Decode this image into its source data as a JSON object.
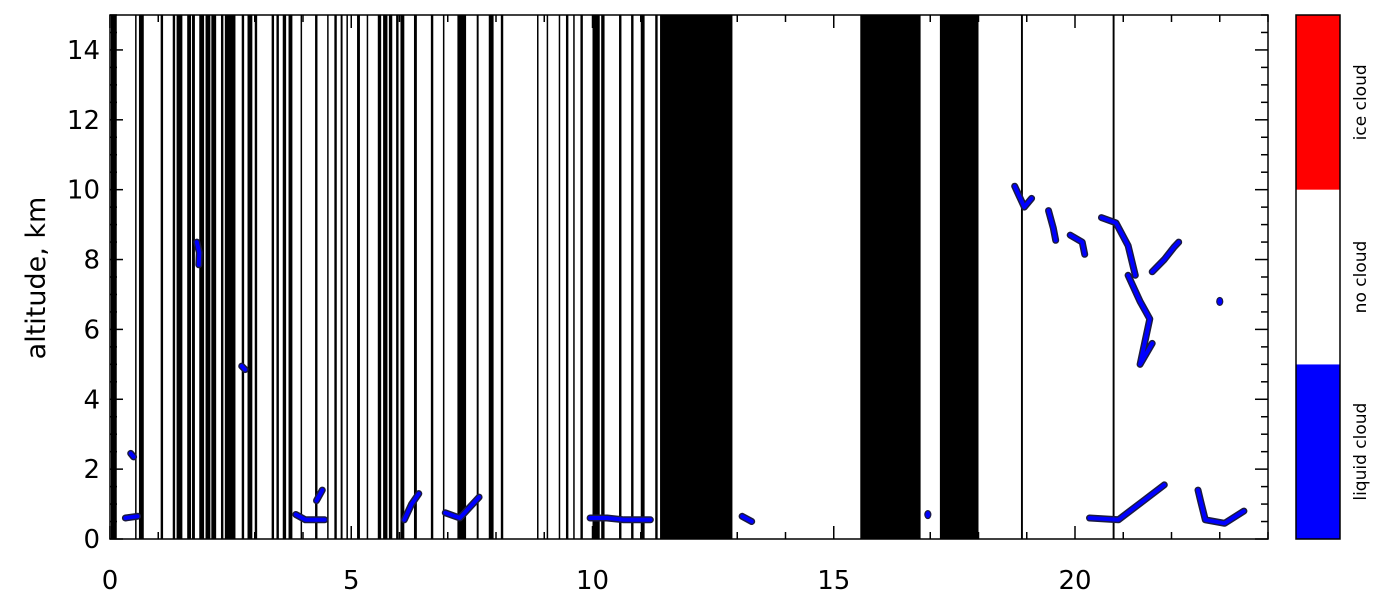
{
  "chart_data": {
    "type": "heatmap",
    "title": "",
    "xlabel": "",
    "ylabel": "altitude,  km",
    "xlim": [
      0,
      24
    ],
    "ylim": [
      0,
      15
    ],
    "x_ticks": [
      0,
      5,
      10,
      15,
      20
    ],
    "y_ticks": [
      0,
      2,
      4,
      6,
      8,
      10,
      12,
      14
    ],
    "categories": [
      "liquid cloud",
      "no cloud",
      "ice cloud"
    ],
    "colors": {
      "liquid cloud": "#0000ff",
      "no cloud": "#ffffff",
      "ice cloud": "#ff0000",
      "missing data": "#000000",
      "contour": "#1a1a40"
    },
    "missing_data_bands": [
      [
        0.02,
        0.14
      ],
      [
        0.52,
        0.55
      ],
      [
        0.6,
        0.7
      ],
      [
        1.05,
        1.1
      ],
      [
        1.3,
        1.35
      ],
      [
        1.38,
        1.5
      ],
      [
        1.6,
        1.68
      ],
      [
        1.7,
        1.76
      ],
      [
        1.85,
        1.95
      ],
      [
        1.98,
        2.08
      ],
      [
        2.1,
        2.2
      ],
      [
        2.3,
        2.35
      ],
      [
        2.38,
        2.6
      ],
      [
        2.73,
        2.78
      ],
      [
        2.85,
        2.95
      ],
      [
        3.0,
        3.05
      ],
      [
        3.35,
        3.4
      ],
      [
        3.45,
        3.5
      ],
      [
        3.58,
        3.65
      ],
      [
        3.7,
        3.78
      ],
      [
        3.95,
        3.98
      ],
      [
        4.25,
        4.3
      ],
      [
        4.5,
        4.53
      ],
      [
        4.65,
        4.7
      ],
      [
        4.78,
        4.82
      ],
      [
        4.9,
        4.93
      ],
      [
        5.12,
        5.18
      ],
      [
        5.32,
        5.35
      ],
      [
        5.55,
        5.62
      ],
      [
        5.66,
        5.75
      ],
      [
        5.78,
        5.85
      ],
      [
        5.93,
        5.98
      ],
      [
        6.02,
        6.1
      ],
      [
        6.3,
        6.36
      ],
      [
        6.65,
        6.7
      ],
      [
        6.9,
        6.93
      ],
      [
        7.2,
        7.38
      ],
      [
        7.6,
        7.64
      ],
      [
        7.85,
        7.95
      ],
      [
        8.1,
        8.15
      ],
      [
        8.85,
        8.88
      ],
      [
        9.05,
        9.08
      ],
      [
        9.3,
        9.33
      ],
      [
        9.45,
        9.5
      ],
      [
        9.6,
        9.63
      ],
      [
        9.75,
        9.8
      ],
      [
        10.0,
        10.15
      ],
      [
        10.18,
        10.25
      ],
      [
        10.55,
        10.6
      ],
      [
        10.8,
        10.85
      ],
      [
        11.0,
        11.08
      ],
      [
        11.3,
        11.35
      ],
      [
        11.4,
        12.9
      ],
      [
        15.55,
        16.8
      ],
      [
        17.2,
        18.0
      ],
      [
        18.88,
        18.92
      ],
      [
        20.78,
        20.82
      ]
    ],
    "liquid_cloud_patches": [
      [
        [
          0.43,
          2.45
        ],
        [
          0.49,
          2.35
        ]
      ],
      [
        [
          0.32,
          0.6
        ],
        [
          0.57,
          0.65
        ]
      ],
      [
        [
          1.8,
          8.5
        ],
        [
          1.85,
          8.2
        ],
        [
          1.84,
          7.85
        ]
      ],
      [
        [
          2.73,
          4.95
        ],
        [
          2.8,
          4.85
        ]
      ],
      [
        [
          3.85,
          0.7
        ],
        [
          4.05,
          0.55
        ],
        [
          4.45,
          0.55
        ]
      ],
      [
        [
          4.28,
          1.1
        ],
        [
          4.4,
          1.4
        ]
      ],
      [
        [
          6.1,
          0.55
        ],
        [
          6.25,
          1.0
        ],
        [
          6.4,
          1.3
        ]
      ],
      [
        [
          6.95,
          0.75
        ],
        [
          7.25,
          0.6
        ],
        [
          7.65,
          1.2
        ]
      ],
      [
        [
          9.95,
          0.6
        ],
        [
          10.3,
          0.6
        ],
        [
          10.65,
          0.55
        ],
        [
          11.2,
          0.55
        ]
      ],
      [
        [
          13.1,
          0.65
        ],
        [
          13.3,
          0.5
        ]
      ],
      [
        [
          16.95,
          0.7
        ]
      ],
      [
        [
          18.75,
          10.1
        ],
        [
          18.95,
          9.5
        ],
        [
          19.1,
          9.75
        ]
      ],
      [
        [
          19.45,
          9.4
        ],
        [
          19.55,
          8.9
        ],
        [
          19.6,
          8.55
        ]
      ],
      [
        [
          19.9,
          8.7
        ],
        [
          20.15,
          8.5
        ],
        [
          20.2,
          8.15
        ]
      ],
      [
        [
          20.55,
          9.2
        ],
        [
          20.85,
          9.05
        ],
        [
          21.1,
          8.4
        ],
        [
          21.25,
          7.55
        ]
      ],
      [
        [
          21.1,
          7.55
        ],
        [
          21.35,
          6.8
        ],
        [
          21.55,
          6.3
        ],
        [
          21.35,
          5.0
        ],
        [
          21.6,
          5.6
        ]
      ],
      [
        [
          21.6,
          7.65
        ],
        [
          21.85,
          8.0
        ],
        [
          22.05,
          8.35
        ],
        [
          22.15,
          8.5
        ]
      ],
      [
        [
          23.0,
          6.8
        ]
      ],
      [
        [
          20.3,
          0.6
        ],
        [
          20.9,
          0.55
        ],
        [
          21.85,
          1.55
        ]
      ],
      [
        [
          22.55,
          1.4
        ],
        [
          22.6,
          1.1
        ],
        [
          22.7,
          0.55
        ],
        [
          23.1,
          0.45
        ],
        [
          23.5,
          0.8
        ]
      ]
    ]
  }
}
